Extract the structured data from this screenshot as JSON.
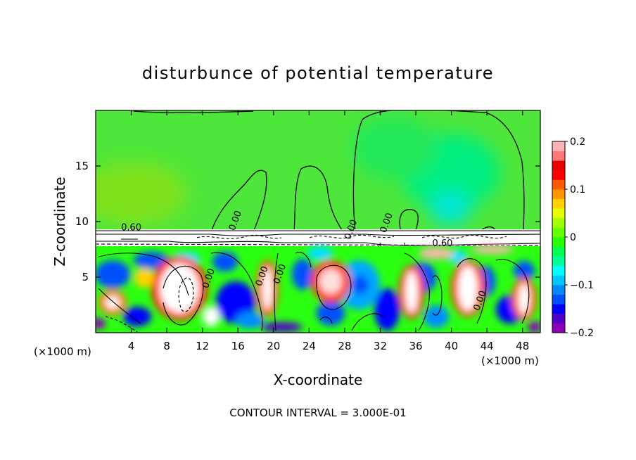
{
  "chart_data": {
    "type": "heatmap",
    "title": "disturbunce of potential temperature",
    "xlabel": "X-coordinate",
    "ylabel": "Z-coordinate",
    "x_unit_left": "(×1000 m)",
    "x_unit_right": "(×1000 m)",
    "xlim": [
      0,
      50
    ],
    "ylim": [
      0,
      20
    ],
    "x_ticks": [
      4,
      8,
      12,
      16,
      20,
      24,
      28,
      32,
      36,
      40,
      44,
      48
    ],
    "y_ticks": [
      5,
      10,
      15
    ],
    "colorbar": {
      "range": [
        -0.2,
        0.2
      ],
      "tick_labels": [
        "0.2",
        "0.1",
        "0",
        "−0.1",
        "−0.2"
      ],
      "tick_values": [
        0.2,
        0.1,
        0,
        -0.1,
        -0.2
      ],
      "colors": [
        "#8a00b8",
        "#5000c8",
        "#0000ff",
        "#0050ff",
        "#008cff",
        "#00c8ff",
        "#00ffff",
        "#00ff96",
        "#00ff50",
        "#28ff00",
        "#64ff00",
        "#a0ff00",
        "#e6ff00",
        "#ffd200",
        "#ff9600",
        "#ff5a00",
        "#ff0000",
        "#e60000",
        "#ff7878",
        "#ffb4b4"
      ]
    },
    "contour_labels": [
      {
        "text": "0.60",
        "x": 4.0,
        "z": 9.2
      },
      {
        "text": "0.00",
        "x": 13.0,
        "z": 4.8
      },
      {
        "text": "0.00",
        "x": 16.0,
        "z": 10.0
      },
      {
        "text": "0.00",
        "x": 19.0,
        "z": 5.0
      },
      {
        "text": "0.00",
        "x": 21.0,
        "z": 5.2
      },
      {
        "text": "0.00",
        "x": 29.0,
        "z": 9.2
      },
      {
        "text": "0.00",
        "x": 33.0,
        "z": 9.8
      },
      {
        "text": "0.60",
        "x": 39.0,
        "z": 7.8
      },
      {
        "text": "0.00",
        "x": 43.5,
        "z": 2.8
      }
    ],
    "annotation": "CONTOUR INTERVAL = 3.000E-01"
  }
}
